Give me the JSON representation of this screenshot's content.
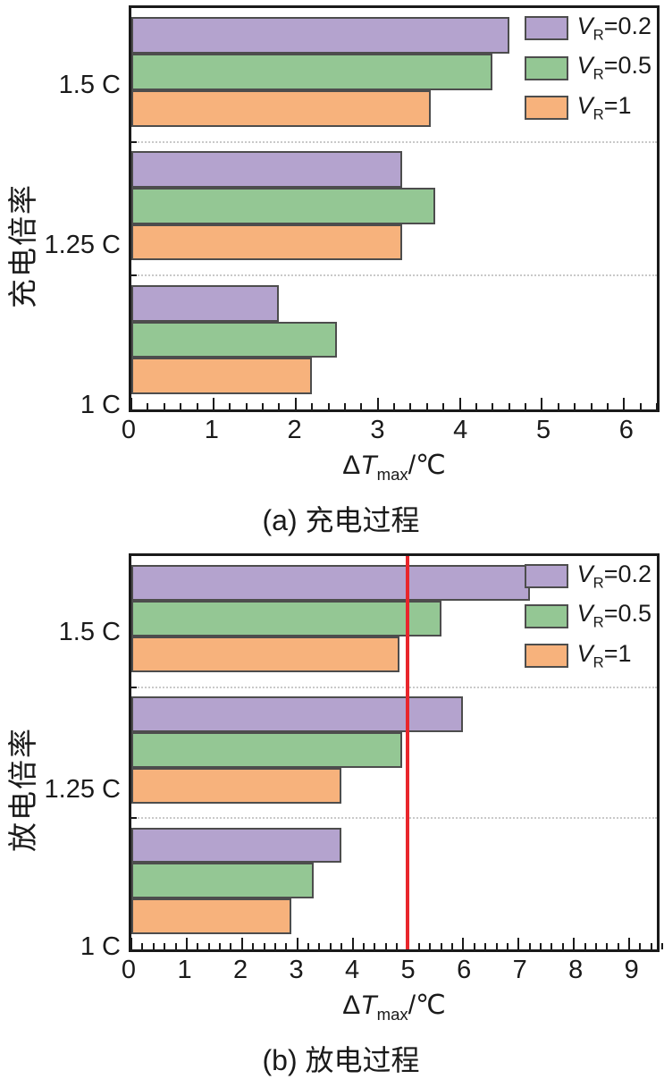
{
  "colors": {
    "bar_border": "#4d4d4d",
    "frame": "#1a1a1a",
    "separator": "#c9c9c9",
    "reference_line": "#e8262c",
    "text": "#1a1a1a"
  },
  "chart_data": [
    {
      "type": "bar",
      "orientation": "horizontal",
      "caption": "(a) 充电过程",
      "ylabel": "充电倍率",
      "xlabel": "ΔTmax/℃",
      "xlabel_parts": {
        "delta": "Δ",
        "var": "T",
        "sub": "max",
        "unit": "/℃"
      },
      "categories": [
        "1.5 C",
        "1.25 C",
        "1 C"
      ],
      "series": [
        {
          "name": "VR=0.2",
          "color": "#b4a3ce",
          "values": [
            4.6,
            3.3,
            1.8
          ]
        },
        {
          "name": "VR=0.5",
          "color": "#94c794",
          "values": [
            4.4,
            3.7,
            2.5
          ]
        },
        {
          "name": "VR=1",
          "color": "#f7b27c",
          "values": [
            3.65,
            3.3,
            2.2
          ]
        }
      ],
      "xlim": [
        0,
        6.4
      ],
      "xticks": [
        0,
        1,
        2,
        3,
        4,
        5,
        6
      ],
      "minor_tick_step": 0.2,
      "ref_line": null,
      "legend_position": "top-right",
      "grid": "dotted-group-separators"
    },
    {
      "type": "bar",
      "orientation": "horizontal",
      "caption": "(b) 放电过程",
      "ylabel": "放电倍率",
      "xlabel": "ΔTmax/℃",
      "xlabel_parts": {
        "delta": "Δ",
        "var": "T",
        "sub": "max",
        "unit": "/℃"
      },
      "categories": [
        "1.5 C",
        "1.25 C",
        "1 C"
      ],
      "series": [
        {
          "name": "VR=0.2",
          "color": "#b4a3ce",
          "values": [
            7.2,
            6.0,
            3.8
          ]
        },
        {
          "name": "VR=0.5",
          "color": "#94c794",
          "values": [
            5.6,
            4.9,
            3.3
          ]
        },
        {
          "name": "VR=1",
          "color": "#f7b27c",
          "values": [
            4.85,
            3.8,
            2.9
          ]
        }
      ],
      "xlim": [
        0,
        9.5
      ],
      "xticks": [
        0,
        1,
        2,
        3,
        4,
        5,
        6,
        7,
        8,
        9
      ],
      "minor_tick_step": 0.2,
      "ref_line": {
        "x": 5,
        "color": "#e8262c"
      },
      "legend_position": "top-right",
      "grid": "dotted-group-separators"
    }
  ]
}
